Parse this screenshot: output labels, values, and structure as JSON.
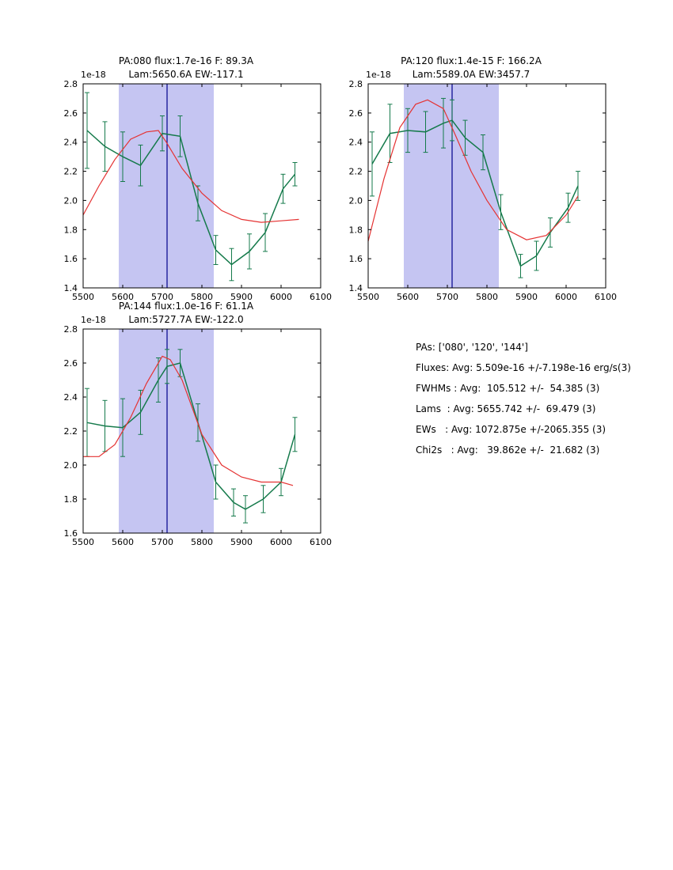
{
  "figure": {
    "background": "#ffffff"
  },
  "colors": {
    "data_line": "#157a4b",
    "fit_line": "#e53333",
    "span_fill": "#c5c5f2",
    "vline": "#00008b",
    "axis": "#000000"
  },
  "stats_panel": {
    "lines": [
      "PAs: ['080', '120', '144']",
      "Fluxes: Avg: 5.509e-16 +/-7.198e-16 erg/s(3)",
      "FWHMs : Avg:  105.512 +/-  54.385 (3)",
      "Lams  : Avg: 5655.742 +/-  69.479 (3)",
      "EWs   : Avg: 1072.875e +/-2065.355 (3)",
      "Chi2s   : Avg:   39.862e +/-  21.682 (3)"
    ]
  },
  "chart_data": [
    {
      "type": "line",
      "title_line1": "PA:080 flux:1.7e-16 F: 89.3A",
      "title_line2": "Lam:5650.6A EW:-117.1",
      "offset_label": "1e-18",
      "xlim": [
        5500,
        6100
      ],
      "ylim": [
        1.4,
        2.8
      ],
      "xticks": [
        5500,
        5600,
        5700,
        5800,
        5900,
        6000,
        6100
      ],
      "yticks": [
        1.4,
        1.6,
        1.8,
        2.0,
        2.2,
        2.4,
        2.6,
        2.8
      ],
      "shaded_region": [
        5590,
        5830
      ],
      "vline_x": 5712,
      "grid": false,
      "legend": "none",
      "series": [
        {
          "name": "data",
          "color_key": "data_line",
          "x": [
            5510,
            5555,
            5600,
            5645,
            5700,
            5745,
            5790,
            5835,
            5875,
            5920,
            5960,
            6005,
            6035
          ],
          "y": [
            2.48,
            2.37,
            2.3,
            2.24,
            2.46,
            2.44,
            1.98,
            1.66,
            1.56,
            1.65,
            1.78,
            2.08,
            2.18
          ],
          "yerr": [
            0.26,
            0.17,
            0.17,
            0.14,
            0.12,
            0.14,
            0.12,
            0.1,
            0.11,
            0.12,
            0.13,
            0.1,
            0.08
          ]
        },
        {
          "name": "fit",
          "color_key": "fit_line",
          "x": [
            5500,
            5540,
            5580,
            5620,
            5660,
            5690,
            5710,
            5750,
            5800,
            5850,
            5900,
            5950,
            6000,
            6045
          ],
          "y": [
            1.9,
            2.1,
            2.28,
            2.42,
            2.47,
            2.48,
            2.4,
            2.22,
            2.05,
            1.93,
            1.87,
            1.85,
            1.86,
            1.87
          ]
        }
      ]
    },
    {
      "type": "line",
      "title_line1": "PA:120 flux:1.4e-15 F: 166.2A",
      "title_line2": "Lam:5589.0A EW:3457.7",
      "offset_label": "1e-18",
      "xlim": [
        5500,
        6100
      ],
      "ylim": [
        1.4,
        2.8
      ],
      "xticks": [
        5500,
        5600,
        5700,
        5800,
        5900,
        6000,
        6100
      ],
      "yticks": [
        1.4,
        1.6,
        1.8,
        2.0,
        2.2,
        2.4,
        2.6,
        2.8
      ],
      "shaded_region": [
        5590,
        5830
      ],
      "vline_x": 5712,
      "grid": false,
      "legend": "none",
      "series": [
        {
          "name": "data",
          "color_key": "data_line",
          "x": [
            5510,
            5555,
            5600,
            5645,
            5690,
            5712,
            5745,
            5790,
            5835,
            5885,
            5925,
            5960,
            6005,
            6030
          ],
          "y": [
            2.25,
            2.46,
            2.48,
            2.47,
            2.53,
            2.55,
            2.43,
            2.33,
            1.92,
            1.55,
            1.62,
            1.78,
            1.95,
            2.1
          ],
          "yerr": [
            0.22,
            0.2,
            0.15,
            0.14,
            0.17,
            0.14,
            0.12,
            0.12,
            0.12,
            0.08,
            0.1,
            0.1,
            0.1,
            0.1
          ]
        },
        {
          "name": "fit",
          "color_key": "fit_line",
          "x": [
            5500,
            5540,
            5580,
            5620,
            5650,
            5690,
            5720,
            5760,
            5800,
            5850,
            5900,
            5950,
            6000,
            6030
          ],
          "y": [
            1.72,
            2.15,
            2.5,
            2.66,
            2.69,
            2.63,
            2.45,
            2.2,
            2.0,
            1.8,
            1.73,
            1.76,
            1.9,
            2.03
          ]
        }
      ]
    },
    {
      "type": "line",
      "title_line1": "PA:144 flux:1.0e-16 F: 61.1A",
      "title_line2": "Lam:5727.7A EW:-122.0",
      "offset_label": "1e-18",
      "xlim": [
        5500,
        6100
      ],
      "ylim": [
        1.6,
        2.8
      ],
      "xticks": [
        5500,
        5600,
        5700,
        5800,
        5900,
        6000,
        6100
      ],
      "yticks": [
        1.6,
        1.8,
        2.0,
        2.2,
        2.4,
        2.6,
        2.8
      ],
      "shaded_region": [
        5590,
        5830
      ],
      "vline_x": 5712,
      "grid": false,
      "legend": "none",
      "series": [
        {
          "name": "data",
          "color_key": "data_line",
          "x": [
            5510,
            5555,
            5600,
            5645,
            5690,
            5712,
            5745,
            5790,
            5835,
            5880,
            5910,
            5955,
            6000,
            6035
          ],
          "y": [
            2.25,
            2.23,
            2.22,
            2.31,
            2.5,
            2.58,
            2.6,
            2.25,
            1.9,
            1.78,
            1.74,
            1.8,
            1.9,
            2.18
          ],
          "yerr": [
            0.2,
            0.15,
            0.17,
            0.13,
            0.13,
            0.1,
            0.08,
            0.11,
            0.1,
            0.08,
            0.08,
            0.08,
            0.08,
            0.1
          ]
        },
        {
          "name": "fit",
          "color_key": "fit_line",
          "x": [
            5500,
            5540,
            5580,
            5620,
            5660,
            5700,
            5720,
            5750,
            5800,
            5850,
            5900,
            5950,
            6000,
            6030
          ],
          "y": [
            2.05,
            2.05,
            2.12,
            2.28,
            2.48,
            2.64,
            2.62,
            2.5,
            2.18,
            2.0,
            1.93,
            1.9,
            1.9,
            1.88
          ]
        }
      ]
    }
  ]
}
